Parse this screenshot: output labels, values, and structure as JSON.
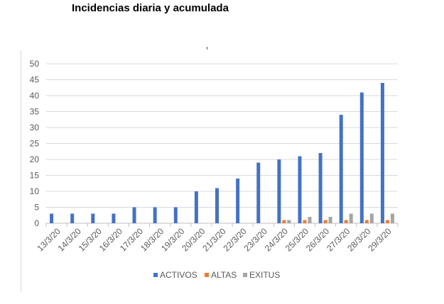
{
  "page_title": "Incidencias diaria y acumulada",
  "chart_data": {
    "type": "bar",
    "categories": [
      "13/3/20",
      "14/3/20",
      "15/3/20",
      "16/3/20",
      "17/3/20",
      "18/3/20",
      "19/3/20",
      "20/3/20",
      "21/3/20",
      "22/3/20",
      "23/3/20",
      "24/3/20",
      "25/3/20",
      "26/3/20",
      "27/3/20",
      "28/3/20",
      "29/3/20"
    ],
    "series": [
      {
        "name": "ACTIVOS",
        "color": "#4472c4",
        "values": [
          3,
          3,
          3,
          3,
          5,
          5,
          5,
          10,
          11,
          14,
          19,
          20,
          21,
          22,
          34,
          41,
          44
        ]
      },
      {
        "name": "ALTAS",
        "color": "#ed7d31",
        "values": [
          0,
          0,
          0,
          0,
          0,
          0,
          0,
          0,
          0,
          0,
          0,
          1,
          1,
          1,
          1,
          1,
          1
        ]
      },
      {
        "name": "EXITUS",
        "color": "#a5a5a5",
        "values": [
          0,
          0,
          0,
          0,
          0,
          0,
          0,
          0,
          0,
          0,
          0,
          1,
          2,
          2,
          3,
          3,
          3
        ]
      }
    ],
    "yticks": [
      "0",
      "5",
      "10",
      "15",
      "20",
      "25",
      "30",
      "35",
      "40",
      "45",
      "50"
    ],
    "ylim": [
      0,
      50
    ],
    "grid": true,
    "legend_position": "bottom"
  }
}
